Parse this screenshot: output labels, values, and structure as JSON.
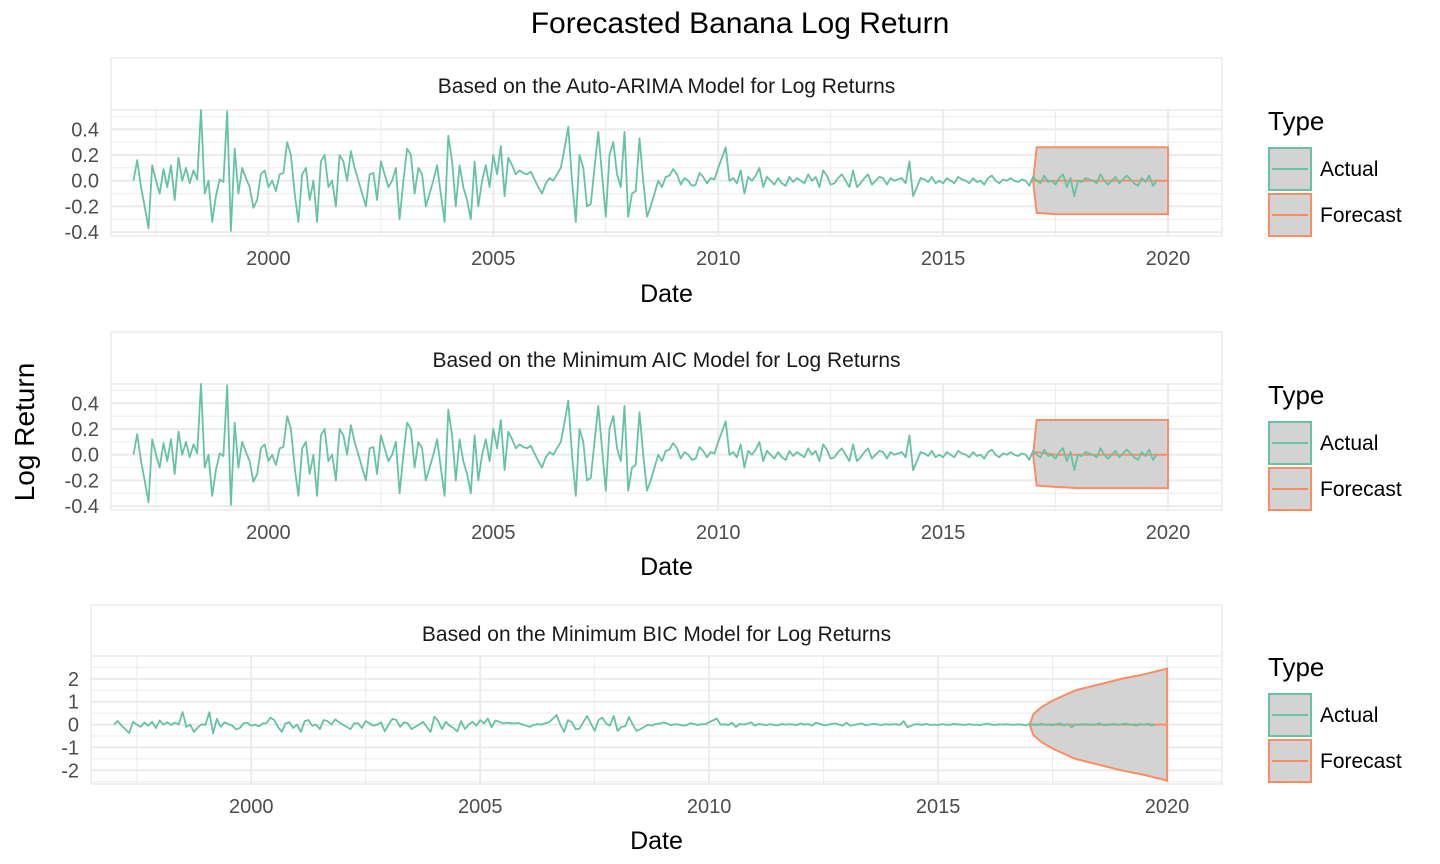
{
  "chart_data": {
    "title": "Forecasted Banana Log Return",
    "ylabel": "Log Return",
    "type": "line",
    "colors": {
      "actual": "#66C2A5",
      "forecast": "#FC8D62",
      "band_fill": "#D3D3D3",
      "grid": "#EBEBEB",
      "panel_border": "#E5E5E5"
    },
    "panels": [
      {
        "subtitle": "Based on the Auto-ARIMA Model for Log Returns",
        "xlabel": "Date",
        "xlim": [
          1996.5,
          2021.2
        ],
        "ylim": [
          -0.43,
          0.55
        ],
        "x_ticks": [
          2000,
          2005,
          2010,
          2015,
          2020
        ],
        "x_tick_labels": [
          "2000",
          "2005",
          "2010",
          "2015",
          "2020"
        ],
        "y_ticks": [
          -0.4,
          -0.2,
          0.0,
          0.2,
          0.4
        ],
        "y_tick_labels": [
          "-0.4",
          "-0.2",
          "0.0",
          "0.2",
          "0.4"
        ],
        "forecast": {
          "x": [
            2017.0,
            2017.08,
            2017.5,
            2018,
            2019,
            2020
          ],
          "mean": [
            0.0,
            0.0,
            0.0,
            0.0,
            0.0,
            0.0
          ],
          "upper": [
            0.0,
            0.26,
            0.26,
            0.26,
            0.26,
            0.26
          ],
          "lower": [
            0.0,
            -0.25,
            -0.26,
            -0.26,
            -0.26,
            -0.26
          ]
        }
      },
      {
        "subtitle": "Based on the Minimum AIC Model for Log Returns",
        "xlabel": "Date",
        "xlim": [
          1996.5,
          2021.2
        ],
        "ylim": [
          -0.43,
          0.55
        ],
        "x_ticks": [
          2000,
          2005,
          2010,
          2015,
          2020
        ],
        "x_tick_labels": [
          "2000",
          "2005",
          "2010",
          "2015",
          "2020"
        ],
        "y_ticks": [
          -0.4,
          -0.2,
          0.0,
          0.2,
          0.4
        ],
        "y_tick_labels": [
          "-0.4",
          "-0.2",
          "0.0",
          "0.2",
          "0.4"
        ],
        "forecast": {
          "x": [
            2017.0,
            2017.08,
            2017.5,
            2018,
            2019,
            2020
          ],
          "mean": [
            0.0,
            0.02,
            0.0,
            0.0,
            0.0,
            0.0
          ],
          "upper": [
            0.0,
            0.27,
            0.27,
            0.27,
            0.27,
            0.27
          ],
          "lower": [
            0.0,
            -0.24,
            -0.25,
            -0.26,
            -0.26,
            -0.26
          ]
        }
      },
      {
        "subtitle": "Based on the Minimum BIC Model for Log Returns",
        "xlabel": "Date",
        "xlim": [
          1996.5,
          2021.2
        ],
        "ylim": [
          -2.6,
          3.0
        ],
        "x_ticks": [
          2000,
          2005,
          2010,
          2015,
          2020
        ],
        "x_tick_labels": [
          "2000",
          "2005",
          "2010",
          "2015",
          "2020"
        ],
        "y_ticks": [
          -2,
          -1,
          0,
          1,
          2
        ],
        "y_tick_labels": [
          "-2",
          "-1",
          "0",
          "1",
          "2"
        ],
        "forecast": {
          "x": [
            2017.0,
            2017.08,
            2017.25,
            2017.5,
            2018,
            2018.5,
            2019,
            2019.5,
            2020
          ],
          "mean": [
            0,
            0,
            0,
            0,
            0,
            0,
            0,
            0,
            0
          ],
          "upper": [
            0.0,
            0.45,
            0.75,
            1.05,
            1.5,
            1.75,
            2.0,
            2.2,
            2.45
          ],
          "lower": [
            0.0,
            -0.45,
            -0.75,
            -1.05,
            -1.5,
            -1.75,
            -2.0,
            -2.2,
            -2.45
          ]
        }
      }
    ],
    "actual": {
      "x_start": 1997.0,
      "x_step": 0.08333,
      "values": [
        0.0,
        0.16,
        -0.05,
        -0.2,
        -0.37,
        0.12,
        0.0,
        -0.1,
        0.09,
        -0.05,
        0.12,
        -0.15,
        0.18,
        0.0,
        0.1,
        -0.02,
        0.08,
        0.01,
        0.55,
        -0.1,
        0.0,
        -0.32,
        -0.12,
        0.01,
        -0.01,
        0.54,
        -0.39,
        0.25,
        -0.1,
        0.1,
        0.02,
        -0.05,
        -0.21,
        -0.15,
        0.05,
        0.08,
        -0.05,
        0.0,
        -0.08,
        0.05,
        0.06,
        0.3,
        0.2,
        -0.1,
        -0.32,
        0.05,
        0.1,
        -0.15,
        0.0,
        -0.32,
        0.15,
        0.2,
        -0.05,
        0.0,
        -0.2,
        0.2,
        0.15,
        0.0,
        0.23,
        0.1,
        0.0,
        -0.1,
        -0.2,
        0.05,
        0.06,
        -0.15,
        0.15,
        0.05,
        -0.05,
        0.0,
        0.1,
        -0.3,
        0.0,
        0.25,
        0.2,
        -0.1,
        0.1,
        0.05,
        -0.2,
        -0.1,
        0.0,
        0.12,
        -0.1,
        -0.32,
        0.35,
        0.15,
        -0.2,
        0.12,
        -0.05,
        -0.15,
        -0.3,
        0.15,
        -0.2,
        0.0,
        0.12,
        -0.05,
        0.2,
        0.05,
        0.27,
        -0.12,
        0.18,
        0.12,
        0.05,
        0.08,
        0.06,
        0.05,
        0.07,
        0.01,
        -0.05,
        -0.1,
        -0.02,
        0.02,
        0.0,
        0.05,
        0.1,
        0.25,
        0.42,
        0.0,
        -0.32,
        0.2,
        0.1,
        -0.2,
        -0.18,
        0.1,
        0.38,
        0.05,
        -0.28,
        0.2,
        0.3,
        0.05,
        -0.05,
        0.38,
        -0.28,
        -0.1,
        -0.08,
        0.33,
        0.0,
        -0.28,
        -0.2,
        -0.1,
        0.0,
        -0.05,
        0.03,
        0.04,
        0.09,
        0.05,
        -0.03,
        0.02,
        0.0,
        -0.04,
        -0.03,
        0.06,
        0.03,
        -0.02,
        0.02,
        0.01,
        0.1,
        0.18,
        0.26,
        0.0,
        0.02,
        -0.02,
        0.08,
        -0.1,
        0.03,
        0.0,
        0.04,
        0.1,
        -0.05,
        0.03,
        0.0,
        -0.03,
        0.02,
        -0.02,
        -0.04,
        0.03,
        -0.01,
        0.02,
        0.0,
        -0.02,
        0.05,
        0.0,
        0.03,
        -0.05,
        0.08,
        0.04,
        -0.03,
        -0.02,
        0.02,
        0.05,
        0.0,
        -0.05,
        0.08,
        -0.05,
        -0.02,
        0.02,
        0.05,
        -0.03,
        0.0,
        0.03,
        0.02,
        -0.03,
        0.02,
        0.0,
        0.01,
        0.02,
        -0.02,
        0.15,
        -0.12,
        -0.05,
        0.02,
        0.01,
        -0.01,
        0.03,
        -0.02,
        0.0,
        -0.02,
        0.02,
        0.0,
        -0.02,
        0.03,
        0.01,
        0.0,
        -0.02,
        0.02,
        -0.01,
        0.0,
        -0.03,
        0.02,
        0.04,
        0.0,
        -0.02,
        0.01,
        0.0,
        0.02,
        0.0,
        -0.01,
        0.01,
        0.0,
        -0.04,
        0.03,
        0.0,
        -0.02,
        0.04,
        -0.01,
        0.0,
        -0.03,
        0.02,
        0.05,
        -0.05,
        0.02,
        -0.12,
        0.0,
        -0.01,
        0.02,
        0.01,
        0.0,
        -0.02,
        0.05,
        0.0,
        -0.03,
        0.0,
        0.03,
        -0.02,
        0.01,
        0.04,
        0.01,
        -0.02,
        -0.04,
        0.02,
        -0.01,
        0.04,
        -0.04,
        0.0
      ]
    },
    "legend": {
      "title": "Type",
      "entries": [
        "Actual",
        "Forecast"
      ],
      "position": "right"
    }
  }
}
